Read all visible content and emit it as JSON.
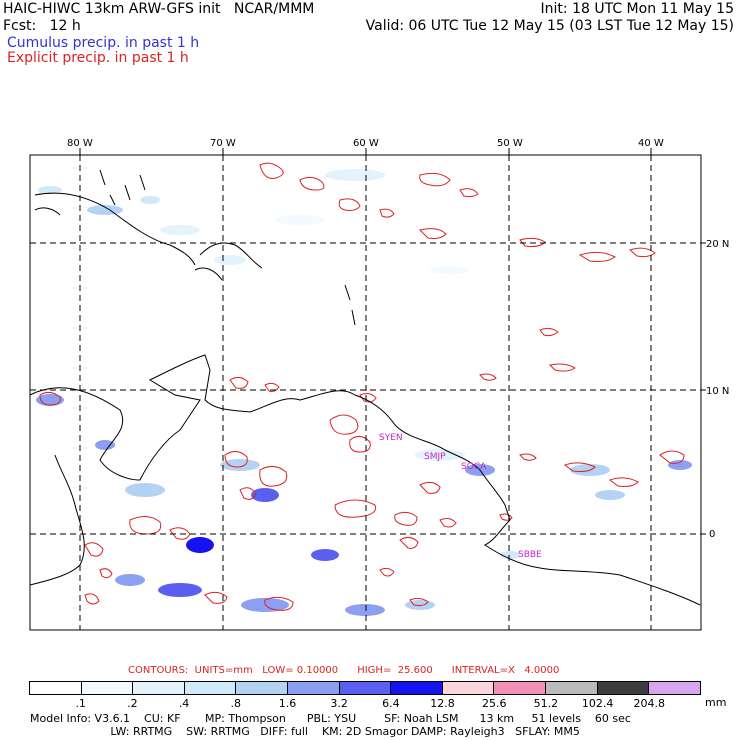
{
  "header": {
    "line1_left": "HAIC-HIWC 13km ARW-GFS init   NCAR/MMM",
    "line1_right": "Init: 18 UTC Mon 11 May 15",
    "line2_left": "Fcst:   12 h",
    "line2_right": "Valid: 06 UTC Tue 12 May 15 (03 LST Tue 12 May 15)",
    "line3": "Cumulus precip. in past 1 h",
    "line4": "Explicit precip. in past 1 h"
  },
  "colors": {
    "cumulus_text": "#3333cc",
    "explicit_text": "#dd2222",
    "contour": "#dd2222",
    "stations": "#cc22cc"
  },
  "map": {
    "lon_labels": [
      "80 W",
      "70 W",
      "60 W",
      "50 W",
      "40 W"
    ],
    "lat_labels": [
      "20 N",
      "10 N",
      "0"
    ],
    "stations": [
      "SYEN",
      "SMJP",
      "SOCA",
      "SBBE"
    ]
  },
  "contours_line": "CONTOURS:  UNITS=mm   LOW= 0.10000      HIGH=  25.600      INTERVAL=X   4.0000",
  "legend": {
    "labels": [
      ".1",
      ".2",
      ".4",
      ".8",
      "1.6",
      "3.2",
      "6.4",
      "12.8",
      "25.6",
      "51.2",
      "102.4",
      "204.8"
    ],
    "unit": "mm",
    "colors": [
      "#ffffff",
      "#f4fafd",
      "#e4f3fb",
      "#cfe9f8",
      "#b3d2f4",
      "#8c9ff0",
      "#5a5ff0",
      "#1414f0",
      "#fad6dc",
      "#f290b8",
      "#bbbbbb",
      "#3d3d3d",
      "#d5a6ee"
    ]
  },
  "model_info": {
    "line1": "Model Info: V3.6.1    CU: KF       MP: Thompson      PBL: YSU        SF: Noah LSM      13 km     51 levels    60 sec",
    "line2": "                       LW: RRTMG    SW: RRTMG   DIFF: full    KM: 2D Smagor DAMP: Rayleigh3   SFLAY: MM5"
  }
}
